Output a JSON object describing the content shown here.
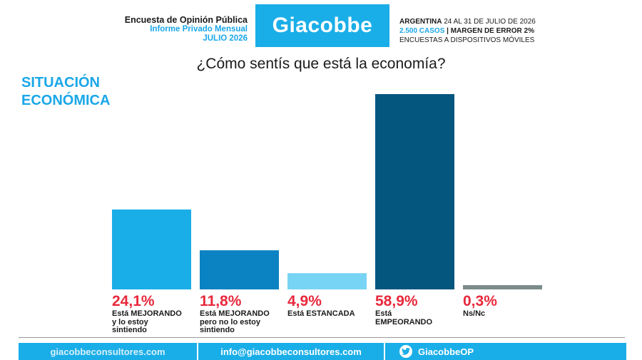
{
  "header": {
    "left_line1": "Encuesta de Opinión Pública",
    "left_line2": "Informe Privado Mensual",
    "left_line3": "JULIO 2026",
    "brand": "Giacobbe",
    "right_country": "ARGENTINA",
    "right_dates": " 24 AL 31 DE JULIO DE 2026",
    "right_cases": "2.500 CASOS",
    "right_margin": " | MARGEN DE ERROR 2%",
    "right_method": "ENCUESTAS A DISPOSITIVOS MÓVILES"
  },
  "section_line1": "SITUACIÓN",
  "section_line2": "ECONÓMICA",
  "chart_data": {
    "type": "bar",
    "title": "¿Cómo sentís que está la economía?",
    "categories": [
      "Está MEJORANDO y lo estoy sintiendo",
      "Está MEJORANDO pero no lo estoy sintiendo",
      "Está ESTANCADA",
      "Está EMPEORANDO",
      "Ns/Nc"
    ],
    "values": [
      24.1,
      11.8,
      4.9,
      58.9,
      0.3
    ],
    "value_labels": [
      "24,1%",
      "11,8%",
      "4,9%",
      "58,9%",
      "0,3%"
    ],
    "category_lines": [
      [
        "Está MEJORANDO",
        "y lo estoy",
        "sintiendo"
      ],
      [
        "Está MEJORANDO",
        "pero no lo estoy",
        "sintiendo"
      ],
      [
        "Está ESTANCADA"
      ],
      [
        "Está",
        "EMPEORANDO"
      ],
      [
        "Ns/Nc"
      ]
    ],
    "colors": [
      "#1aaee8",
      "#0b82c2",
      "#78d4f4",
      "#05567f",
      "#7b8c8a"
    ],
    "ylim": [
      0,
      60
    ],
    "grid": false,
    "legend": "none"
  },
  "footer": {
    "website": "giacobbeconsultores.com",
    "email": "info@giacobbeconsultores.com",
    "twitter": "GiacobbeOP",
    "colors": {
      "bar": "#1aaee8"
    },
    "icon": "twitter-bird-icon"
  }
}
